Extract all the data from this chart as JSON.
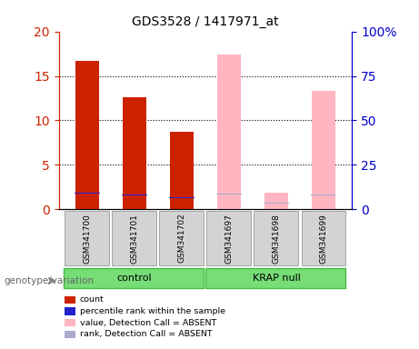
{
  "title": "GDS3528 / 1417971_at",
  "samples": [
    "GSM341700",
    "GSM341701",
    "GSM341702",
    "GSM341697",
    "GSM341698",
    "GSM341699"
  ],
  "ylim_left": [
    0,
    20
  ],
  "ylim_right": [
    0,
    100
  ],
  "yticks_left": [
    0,
    5,
    10,
    15,
    20
  ],
  "yticks_right": [
    0,
    25,
    50,
    75,
    100
  ],
  "ytick_labels_right": [
    "0",
    "25",
    "50",
    "75",
    "100%"
  ],
  "red_bar_color": "#cc2200",
  "blue_bar_color": "#2222cc",
  "pink_bar_color": "#ffb6c1",
  "lightblue_bar_color": "#aaaacc",
  "count_values": [
    16.7,
    12.6,
    8.7,
    null,
    null,
    null
  ],
  "percentile_values": [
    9.0,
    8.0,
    6.7,
    null,
    null,
    null
  ],
  "absent_value_values": [
    null,
    null,
    null,
    17.4,
    1.9,
    13.3
  ],
  "absent_rank_values": [
    null,
    null,
    null,
    8.8,
    3.4,
    8.0
  ],
  "legend_items": [
    {
      "label": "count",
      "color": "#cc2200"
    },
    {
      "label": "percentile rank within the sample",
      "color": "#2222cc"
    },
    {
      "label": "value, Detection Call = ABSENT",
      "color": "#ffb6c1"
    },
    {
      "label": "rank, Detection Call = ABSENT",
      "color": "#aaaacc"
    }
  ],
  "xlabel_genotype": "genotype/variation",
  "bg_color": "#d3d3d3",
  "plot_bg_color": "#ffffff",
  "left_axis_color": "#cc2200",
  "right_axis_color": "#0000cc",
  "title_color": "#000000"
}
